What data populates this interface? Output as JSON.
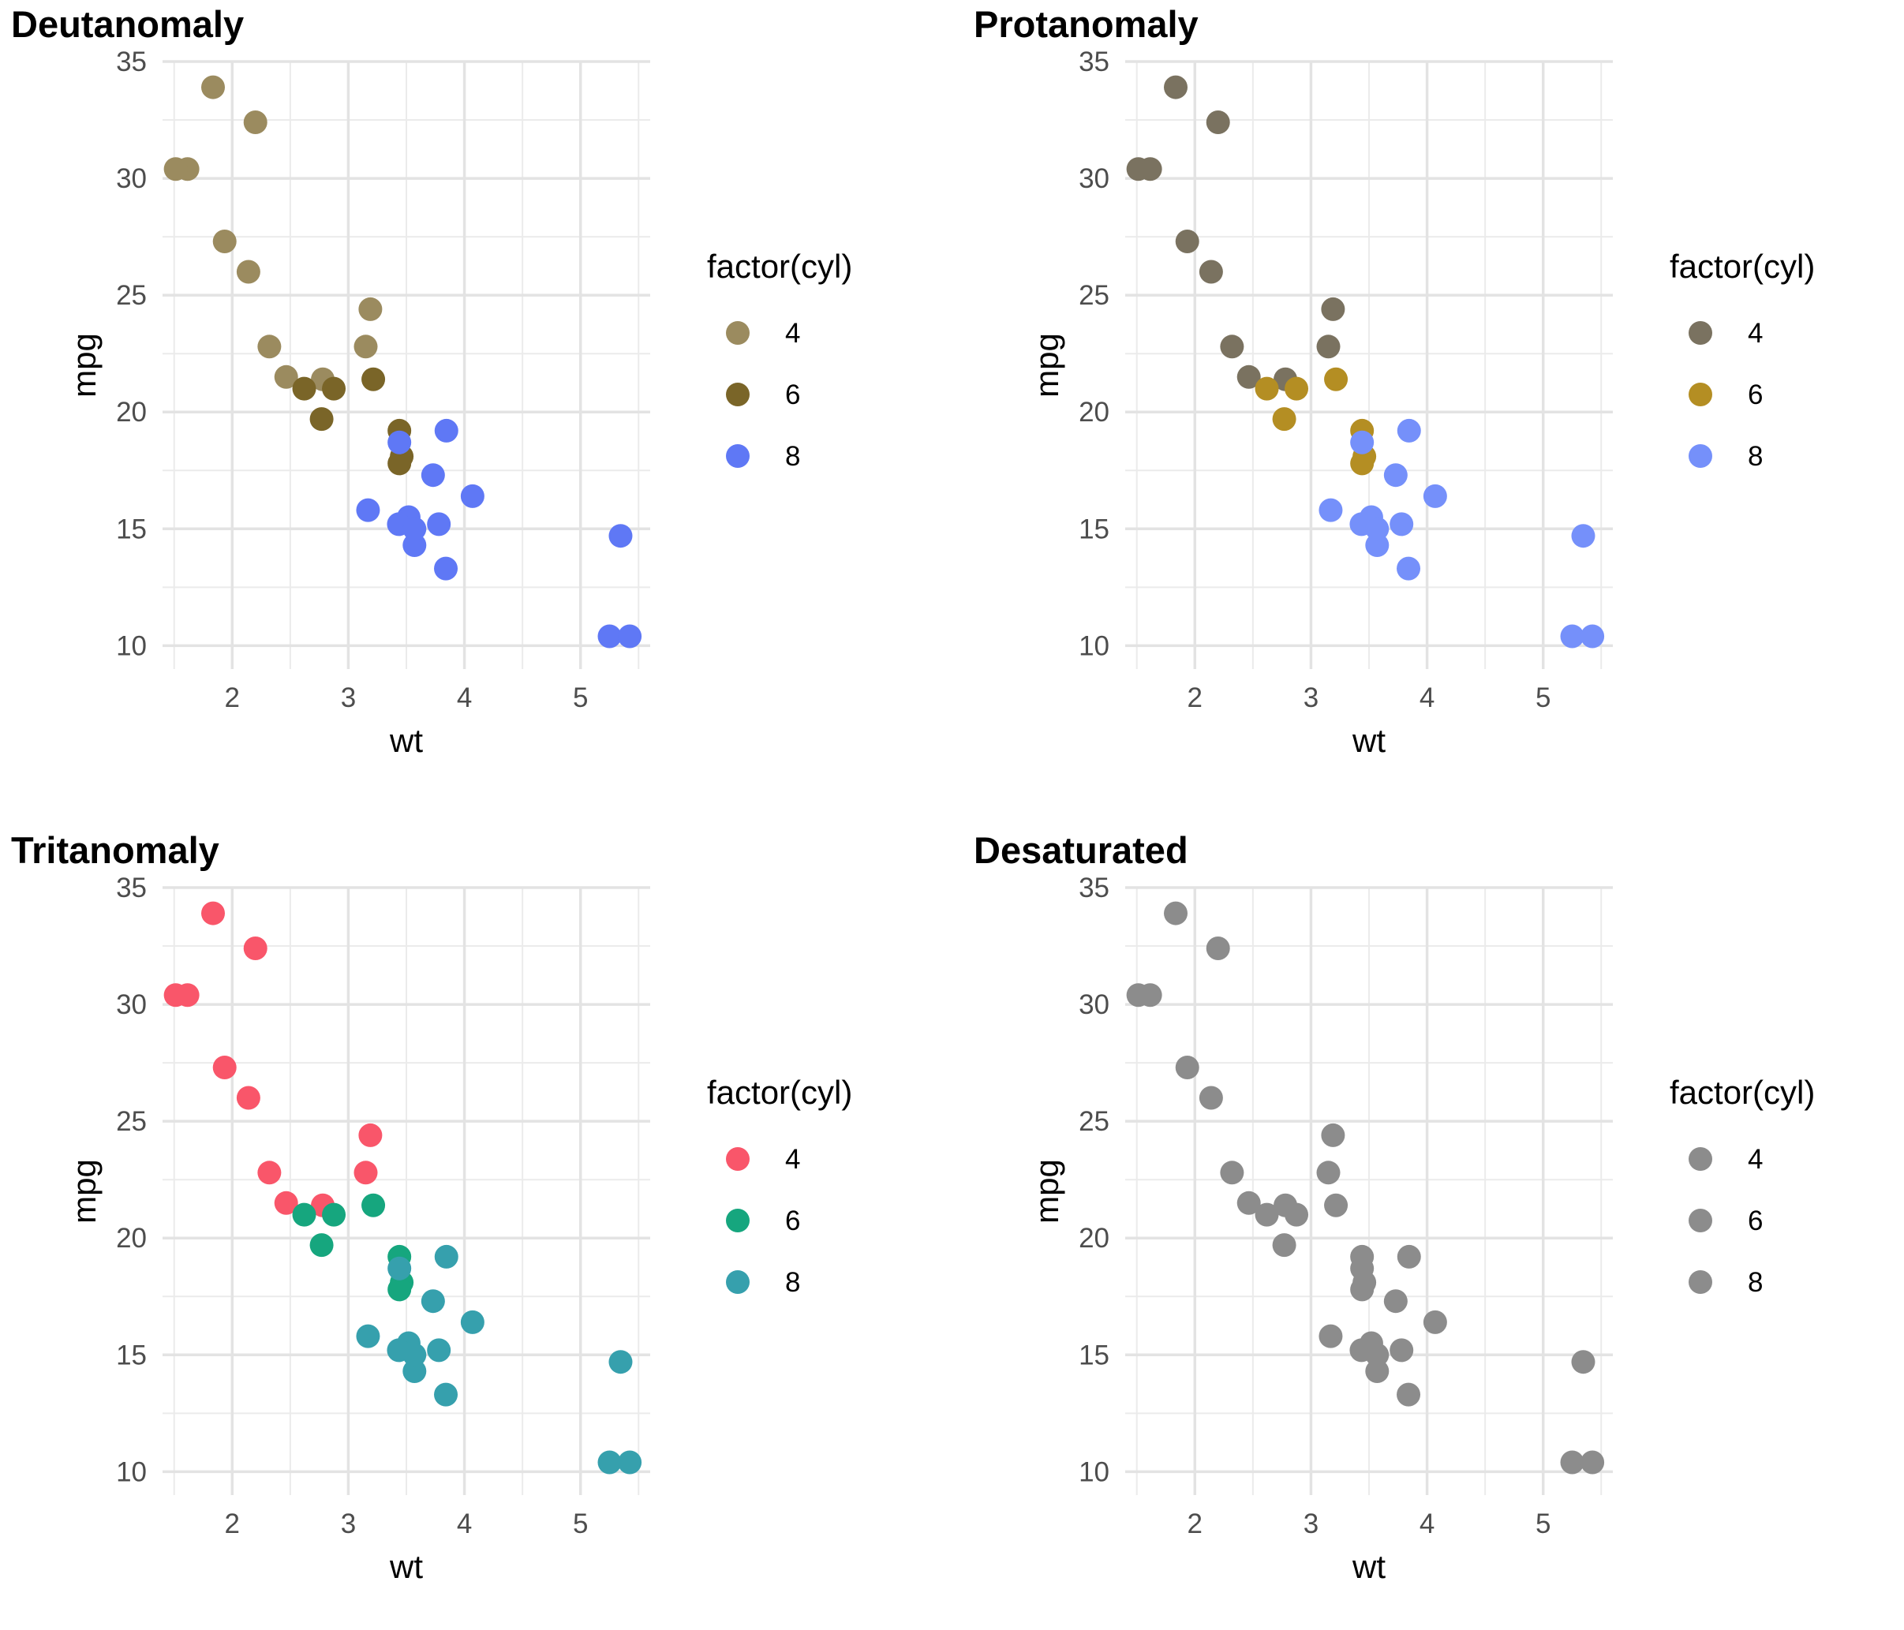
{
  "chart_data": [
    {
      "type": "scatter",
      "title": "Deutanomaly",
      "xlabel": "wt",
      "ylabel": "mpg",
      "xlim": [
        1.4,
        5.6
      ],
      "ylim": [
        9.0,
        35.0
      ],
      "xticks": [
        2,
        3,
        4,
        5
      ],
      "yticks": [
        10,
        15,
        20,
        25,
        30,
        35
      ],
      "grid": true,
      "legend": {
        "title": "factor(cyl)",
        "position": "right",
        "entries": [
          "4",
          "6",
          "8"
        ]
      },
      "colors": {
        "4": "#9b8b5f",
        "6": "#7a6528",
        "8": "#5f78f5"
      },
      "series": [
        {
          "name": "4",
          "points": [
            [
              2.32,
              22.8
            ],
            [
              3.19,
              24.4
            ],
            [
              3.15,
              22.8
            ],
            [
              2.2,
              32.4
            ],
            [
              1.615,
              30.4
            ],
            [
              1.835,
              33.9
            ],
            [
              2.465,
              21.5
            ],
            [
              1.935,
              27.3
            ],
            [
              2.14,
              26.0
            ],
            [
              1.513,
              30.4
            ],
            [
              2.78,
              21.4
            ]
          ]
        },
        {
          "name": "6",
          "points": [
            [
              2.62,
              21.0
            ],
            [
              2.875,
              21.0
            ],
            [
              3.215,
              21.4
            ],
            [
              3.46,
              18.1
            ],
            [
              3.44,
              19.2
            ],
            [
              3.44,
              17.8
            ],
            [
              2.77,
              19.7
            ]
          ]
        },
        {
          "name": "8",
          "points": [
            [
              3.44,
              18.7
            ],
            [
              3.57,
              14.3
            ],
            [
              4.07,
              16.4
            ],
            [
              3.73,
              17.3
            ],
            [
              3.78,
              15.2
            ],
            [
              5.25,
              10.4
            ],
            [
              5.424,
              10.4
            ],
            [
              5.345,
              14.7
            ],
            [
              3.52,
              15.5
            ],
            [
              3.435,
              15.2
            ],
            [
              3.84,
              13.3
            ],
            [
              3.845,
              19.2
            ],
            [
              3.17,
              15.8
            ],
            [
              3.57,
              15.0
            ]
          ]
        }
      ]
    },
    {
      "type": "scatter",
      "title": "Protanomaly",
      "xlabel": "wt",
      "ylabel": "mpg",
      "xlim": [
        1.4,
        5.6
      ],
      "ylim": [
        9.0,
        35.0
      ],
      "xticks": [
        2,
        3,
        4,
        5
      ],
      "yticks": [
        10,
        15,
        20,
        25,
        30,
        35
      ],
      "grid": true,
      "legend": {
        "title": "factor(cyl)",
        "position": "right",
        "entries": [
          "4",
          "6",
          "8"
        ]
      },
      "colors": {
        "4": "#7a7260",
        "6": "#b48e23",
        "8": "#7590fa"
      },
      "series": [
        {
          "name": "4",
          "points": [
            [
              2.32,
              22.8
            ],
            [
              3.19,
              24.4
            ],
            [
              3.15,
              22.8
            ],
            [
              2.2,
              32.4
            ],
            [
              1.615,
              30.4
            ],
            [
              1.835,
              33.9
            ],
            [
              2.465,
              21.5
            ],
            [
              1.935,
              27.3
            ],
            [
              2.14,
              26.0
            ],
            [
              1.513,
              30.4
            ],
            [
              2.78,
              21.4
            ]
          ]
        },
        {
          "name": "6",
          "points": [
            [
              2.62,
              21.0
            ],
            [
              2.875,
              21.0
            ],
            [
              3.215,
              21.4
            ],
            [
              3.46,
              18.1
            ],
            [
              3.44,
              19.2
            ],
            [
              3.44,
              17.8
            ],
            [
              2.77,
              19.7
            ]
          ]
        },
        {
          "name": "8",
          "points": [
            [
              3.44,
              18.7
            ],
            [
              3.57,
              14.3
            ],
            [
              4.07,
              16.4
            ],
            [
              3.73,
              17.3
            ],
            [
              3.78,
              15.2
            ],
            [
              5.25,
              10.4
            ],
            [
              5.424,
              10.4
            ],
            [
              5.345,
              14.7
            ],
            [
              3.52,
              15.5
            ],
            [
              3.435,
              15.2
            ],
            [
              3.84,
              13.3
            ],
            [
              3.845,
              19.2
            ],
            [
              3.17,
              15.8
            ],
            [
              3.57,
              15.0
            ]
          ]
        }
      ]
    },
    {
      "type": "scatter",
      "title": "Tritanomaly",
      "xlabel": "wt",
      "ylabel": "mpg",
      "xlim": [
        1.4,
        5.6
      ],
      "ylim": [
        9.0,
        35.0
      ],
      "xticks": [
        2,
        3,
        4,
        5
      ],
      "yticks": [
        10,
        15,
        20,
        25,
        30,
        35
      ],
      "grid": true,
      "legend": {
        "title": "factor(cyl)",
        "position": "right",
        "entries": [
          "4",
          "6",
          "8"
        ]
      },
      "colors": {
        "4": "#f9566a",
        "6": "#16a67e",
        "8": "#36a0ad"
      },
      "series": [
        {
          "name": "4",
          "points": [
            [
              2.32,
              22.8
            ],
            [
              3.19,
              24.4
            ],
            [
              3.15,
              22.8
            ],
            [
              2.2,
              32.4
            ],
            [
              1.615,
              30.4
            ],
            [
              1.835,
              33.9
            ],
            [
              2.465,
              21.5
            ],
            [
              1.935,
              27.3
            ],
            [
              2.14,
              26.0
            ],
            [
              1.513,
              30.4
            ],
            [
              2.78,
              21.4
            ]
          ]
        },
        {
          "name": "6",
          "points": [
            [
              2.62,
              21.0
            ],
            [
              2.875,
              21.0
            ],
            [
              3.215,
              21.4
            ],
            [
              3.46,
              18.1
            ],
            [
              3.44,
              19.2
            ],
            [
              3.44,
              17.8
            ],
            [
              2.77,
              19.7
            ]
          ]
        },
        {
          "name": "8",
          "points": [
            [
              3.44,
              18.7
            ],
            [
              3.57,
              14.3
            ],
            [
              4.07,
              16.4
            ],
            [
              3.73,
              17.3
            ],
            [
              3.78,
              15.2
            ],
            [
              5.25,
              10.4
            ],
            [
              5.424,
              10.4
            ],
            [
              5.345,
              14.7
            ],
            [
              3.52,
              15.5
            ],
            [
              3.435,
              15.2
            ],
            [
              3.84,
              13.3
            ],
            [
              3.845,
              19.2
            ],
            [
              3.17,
              15.8
            ],
            [
              3.57,
              15.0
            ]
          ]
        }
      ]
    },
    {
      "type": "scatter",
      "title": "Desaturated",
      "xlabel": "wt",
      "ylabel": "mpg",
      "xlim": [
        1.4,
        5.6
      ],
      "ylim": [
        9.0,
        35.0
      ],
      "xticks": [
        2,
        3,
        4,
        5
      ],
      "yticks": [
        10,
        15,
        20,
        25,
        30,
        35
      ],
      "grid": true,
      "legend": {
        "title": "factor(cyl)",
        "position": "right",
        "entries": [
          "4",
          "6",
          "8"
        ]
      },
      "colors": {
        "4": "#8c8c8c",
        "6": "#8c8c8c",
        "8": "#8c8c8c"
      },
      "series": [
        {
          "name": "4",
          "points": [
            [
              2.32,
              22.8
            ],
            [
              3.19,
              24.4
            ],
            [
              3.15,
              22.8
            ],
            [
              2.2,
              32.4
            ],
            [
              1.615,
              30.4
            ],
            [
              1.835,
              33.9
            ],
            [
              2.465,
              21.5
            ],
            [
              1.935,
              27.3
            ],
            [
              2.14,
              26.0
            ],
            [
              1.513,
              30.4
            ],
            [
              2.78,
              21.4
            ]
          ]
        },
        {
          "name": "6",
          "points": [
            [
              2.62,
              21.0
            ],
            [
              2.875,
              21.0
            ],
            [
              3.215,
              21.4
            ],
            [
              3.46,
              18.1
            ],
            [
              3.44,
              19.2
            ],
            [
              3.44,
              17.8
            ],
            [
              2.77,
              19.7
            ]
          ]
        },
        {
          "name": "8",
          "points": [
            [
              3.44,
              18.7
            ],
            [
              3.57,
              14.3
            ],
            [
              4.07,
              16.4
            ],
            [
              3.73,
              17.3
            ],
            [
              3.78,
              15.2
            ],
            [
              5.25,
              10.4
            ],
            [
              5.424,
              10.4
            ],
            [
              5.345,
              14.7
            ],
            [
              3.52,
              15.5
            ],
            [
              3.435,
              15.2
            ],
            [
              3.84,
              13.3
            ],
            [
              3.845,
              19.2
            ],
            [
              3.17,
              15.8
            ],
            [
              3.57,
              15.0
            ]
          ]
        }
      ]
    }
  ]
}
